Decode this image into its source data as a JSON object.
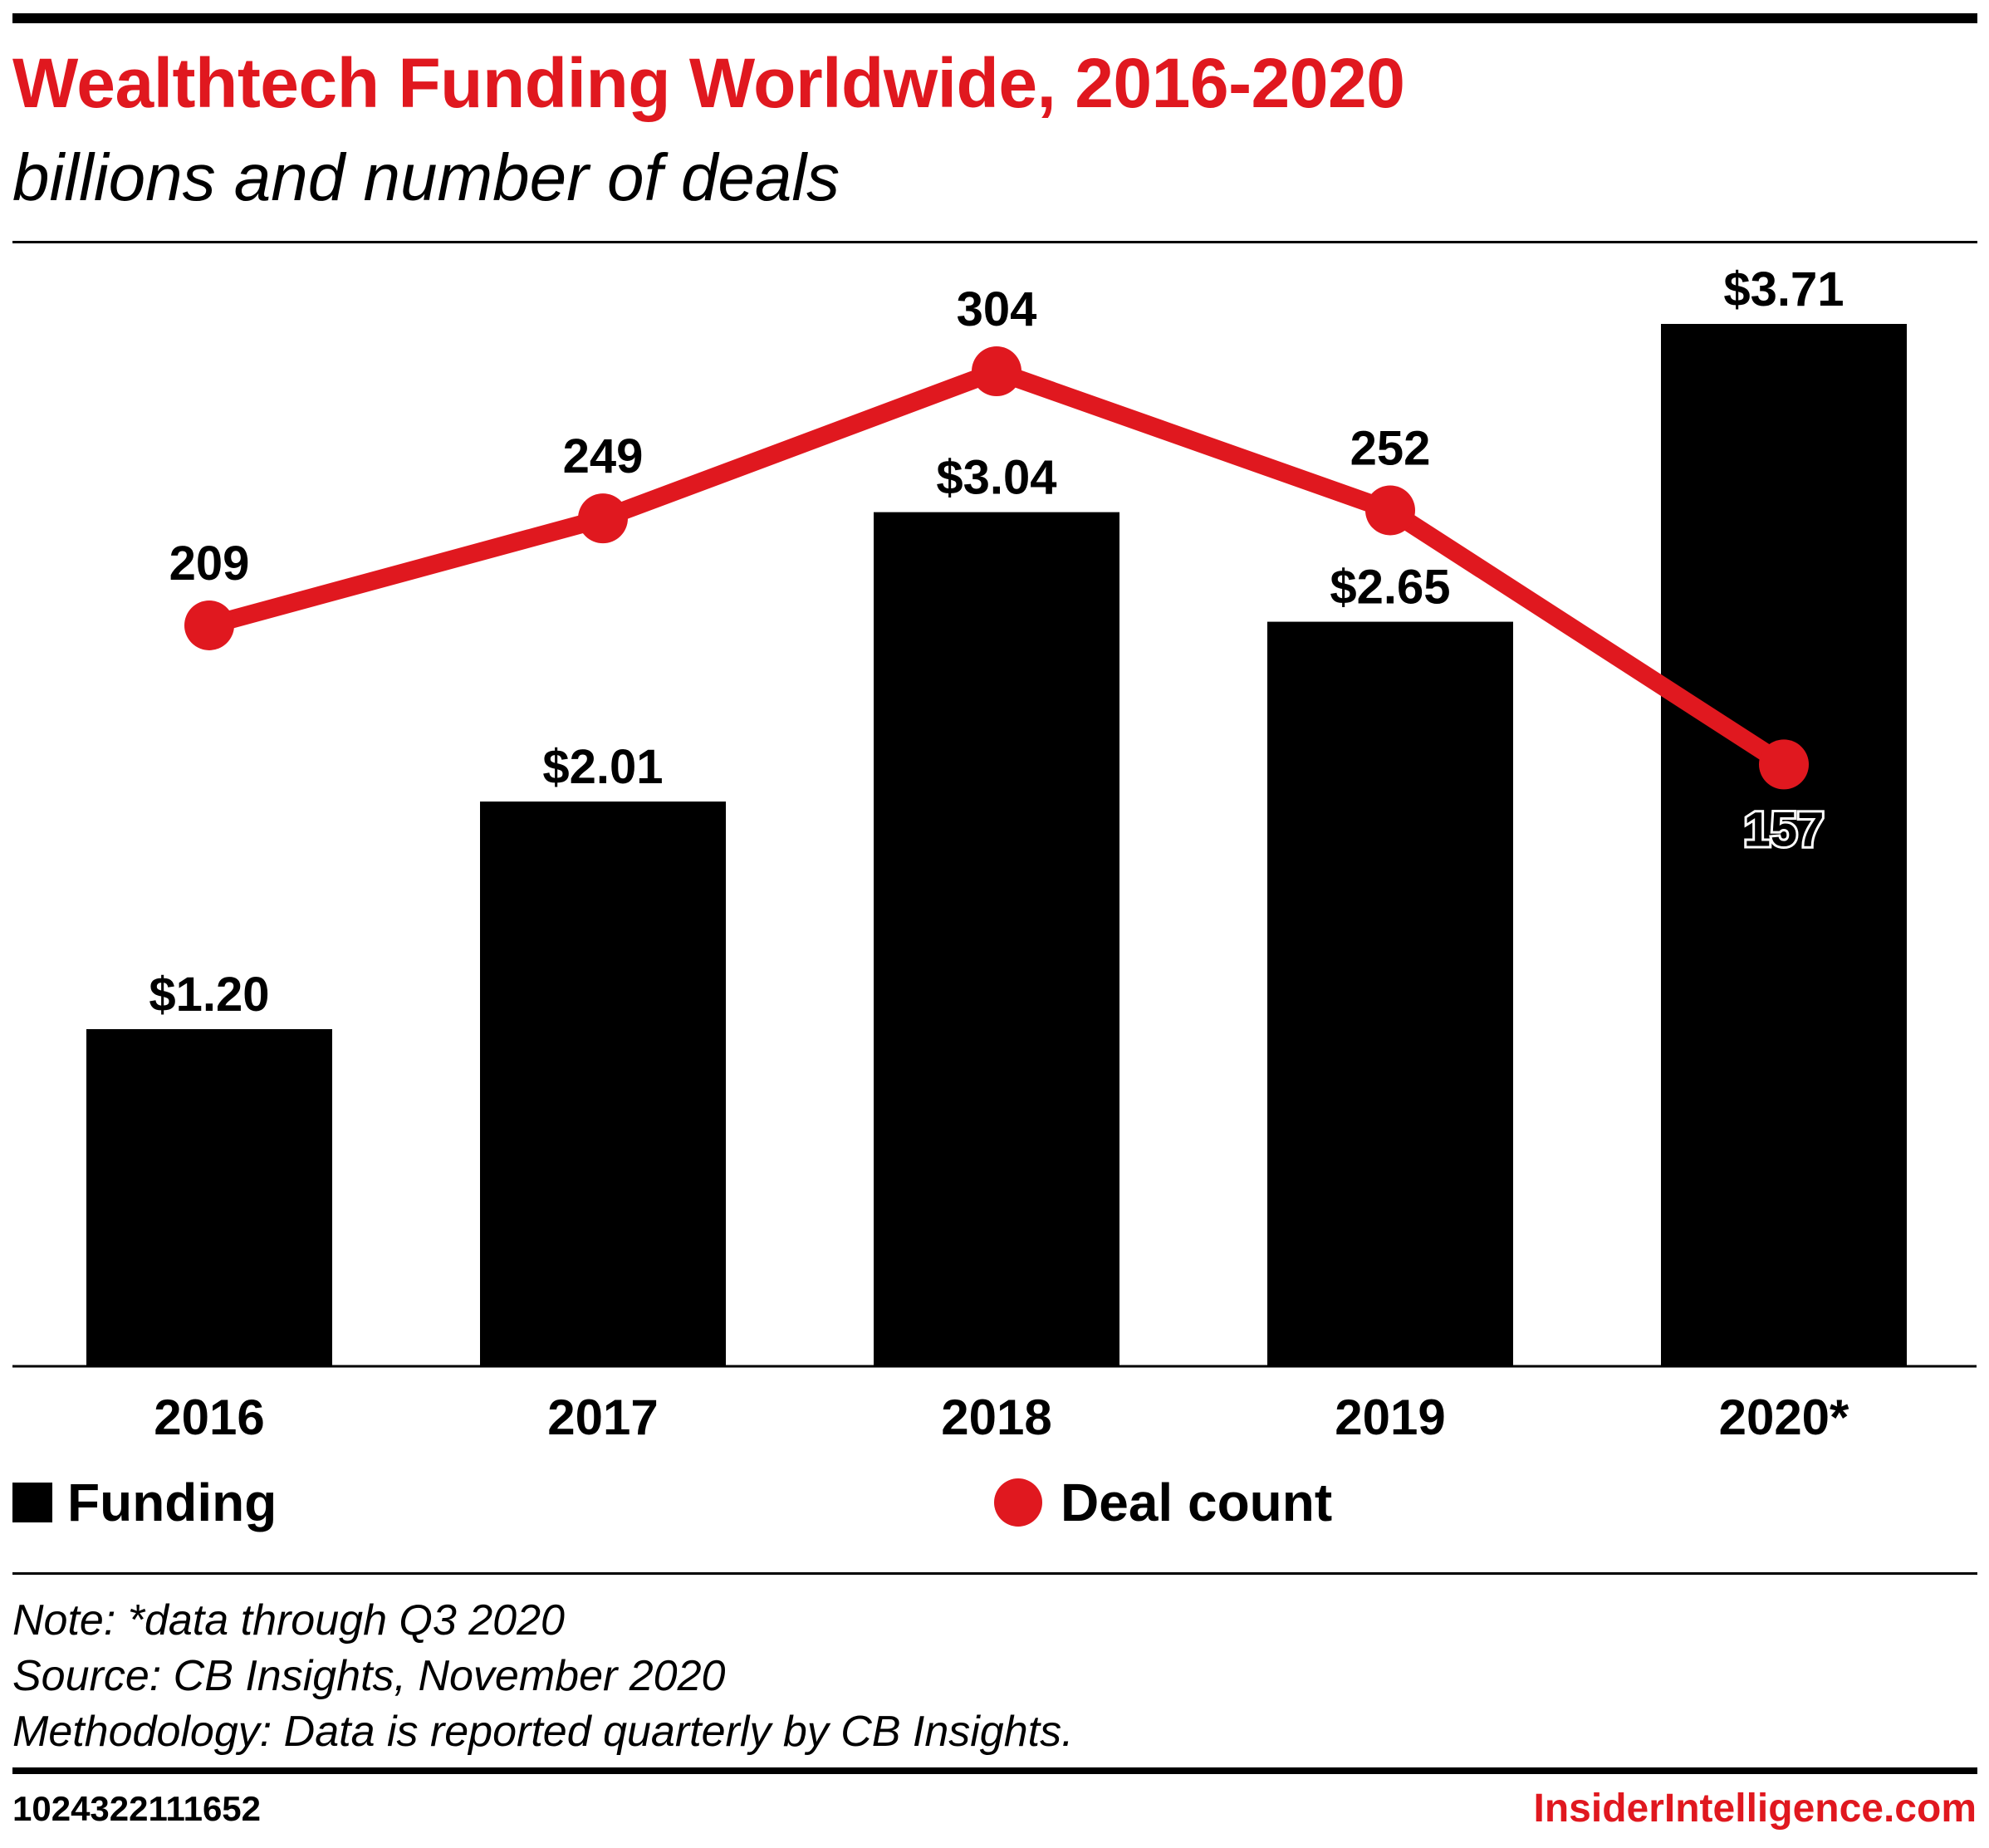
{
  "header": {
    "title": "Wealthtech Funding Worldwide, 2016-2020",
    "subtitle": "billions and number of deals"
  },
  "chart_data": {
    "type": "bar",
    "categories": [
      "2016",
      "2017",
      "2018",
      "2019",
      "2020*"
    ],
    "series": [
      {
        "name": "Funding",
        "type": "bar",
        "values": [
          1.2,
          2.01,
          3.04,
          2.65,
          3.71
        ],
        "labels": [
          "$1.20",
          "$2.01",
          "$3.04",
          "$2.65",
          "$3.71"
        ],
        "color": "#000000"
      },
      {
        "name": "Deal count",
        "type": "line",
        "values": [
          209,
          249,
          304,
          252,
          157
        ],
        "labels": [
          "209",
          "249",
          "304",
          "252",
          "157"
        ],
        "color": "#e0181f"
      }
    ],
    "ylim_funding": [
      0,
      3.71
    ],
    "ylim_deals": [
      -68,
      304
    ],
    "grid": false,
    "legend": "bottom"
  },
  "legend": {
    "funding_label": "Funding",
    "deals_label": "Deal count"
  },
  "notes": {
    "note": "Note: *data through Q3 2020",
    "source": "Source: CB Insights, November 2020",
    "methodology": "Methodology: Data is reported quarterly by CB Insights."
  },
  "footer": {
    "id": "1024322111652",
    "brand": "InsiderIntelligence.com"
  },
  "colors": {
    "accent": "#e0181f",
    "bar": "#000000"
  }
}
